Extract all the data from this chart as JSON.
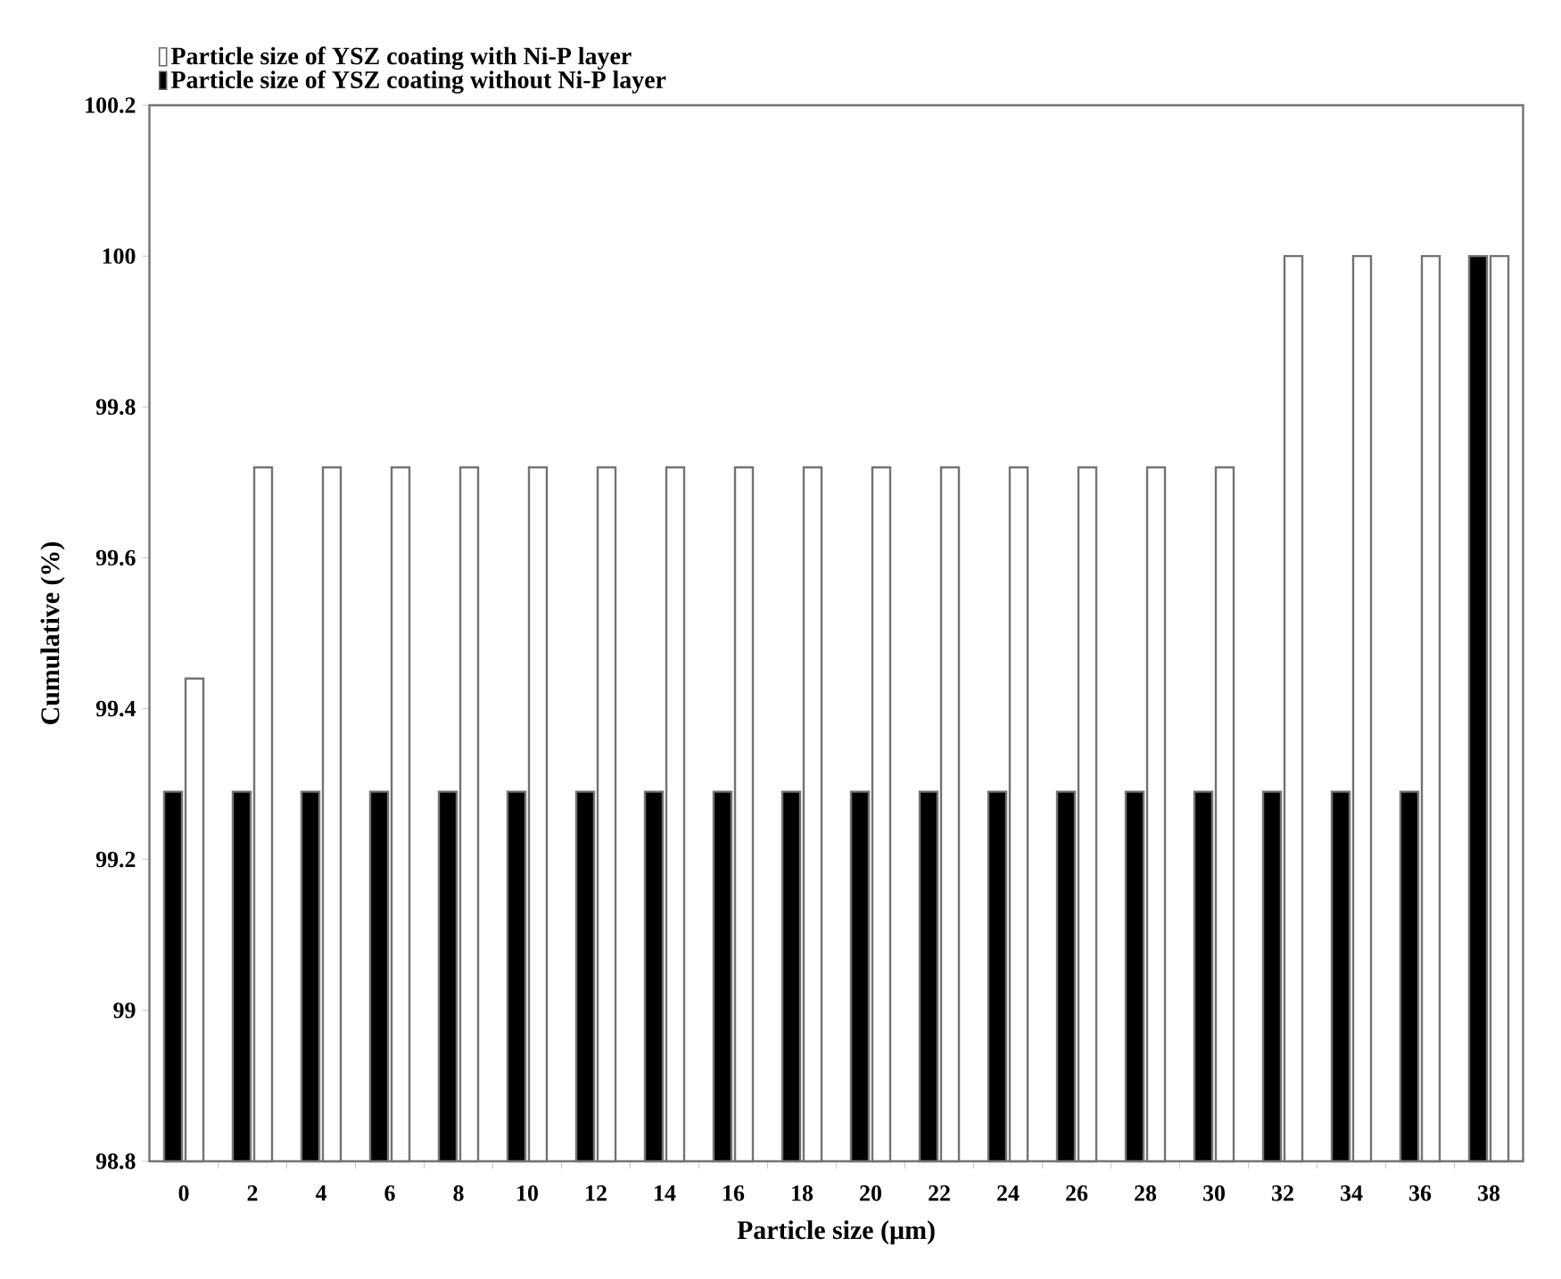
{
  "chart_data": {
    "type": "bar",
    "xlabel": "Particle size (µm)",
    "ylabel": "Cumulative (%)",
    "categories": [
      "0",
      "2",
      "4",
      "6",
      "8",
      "10",
      "12",
      "14",
      "16",
      "18",
      "20",
      "22",
      "24",
      "26",
      "28",
      "30",
      "32",
      "34",
      "36",
      "38"
    ],
    "series": [
      {
        "name": "Particle size of YSZ coating without Ni-P layer",
        "color": "#000000",
        "values": [
          99.29,
          99.29,
          99.29,
          99.29,
          99.29,
          99.29,
          99.29,
          99.29,
          99.29,
          99.29,
          99.29,
          99.29,
          99.29,
          99.29,
          99.29,
          99.29,
          99.29,
          99.29,
          99.29,
          100
        ]
      },
      {
        "name": "Particle size of YSZ coating with Ni-P layer",
        "color": "#ffffff",
        "values": [
          99.44,
          99.72,
          99.72,
          99.72,
          99.72,
          99.72,
          99.72,
          99.72,
          99.72,
          99.72,
          99.72,
          99.72,
          99.72,
          99.72,
          99.72,
          99.72,
          100,
          100,
          100,
          100
        ]
      }
    ],
    "ylim": [
      98.8,
      100.2
    ],
    "yticks": [
      98.8,
      99,
      99.2,
      99.4,
      99.6,
      99.8,
      100,
      100.2
    ],
    "grid": false,
    "legend": "top left"
  }
}
